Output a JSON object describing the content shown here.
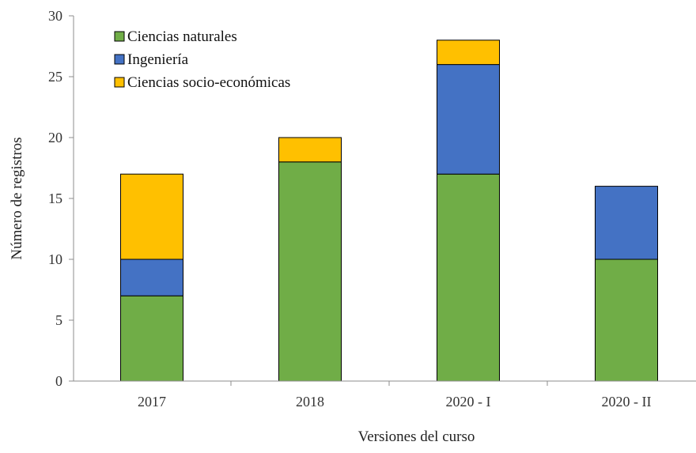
{
  "chart_data": {
    "type": "bar",
    "stacked": true,
    "title": "",
    "xlabel": "Versiones del curso",
    "ylabel": "Número de registros",
    "ylim": [
      0,
      30
    ],
    "yticks": [
      "0",
      "5",
      "10",
      "15",
      "20",
      "25",
      "30"
    ],
    "categories": [
      "2017",
      "2018",
      "2020 - I",
      "2020 - II"
    ],
    "series": [
      {
        "name": "Ciencias naturales",
        "color": "#70AD47",
        "values": [
          7,
          18,
          17,
          10
        ]
      },
      {
        "name": "Ingeniería",
        "color": "#4472C4",
        "values": [
          3,
          0,
          9,
          6
        ]
      },
      {
        "name": "Ciencias socio-económicas",
        "color": "#FFC000",
        "values": [
          7,
          2,
          2,
          0
        ]
      }
    ],
    "grid": false,
    "legend_position": "top-left"
  }
}
